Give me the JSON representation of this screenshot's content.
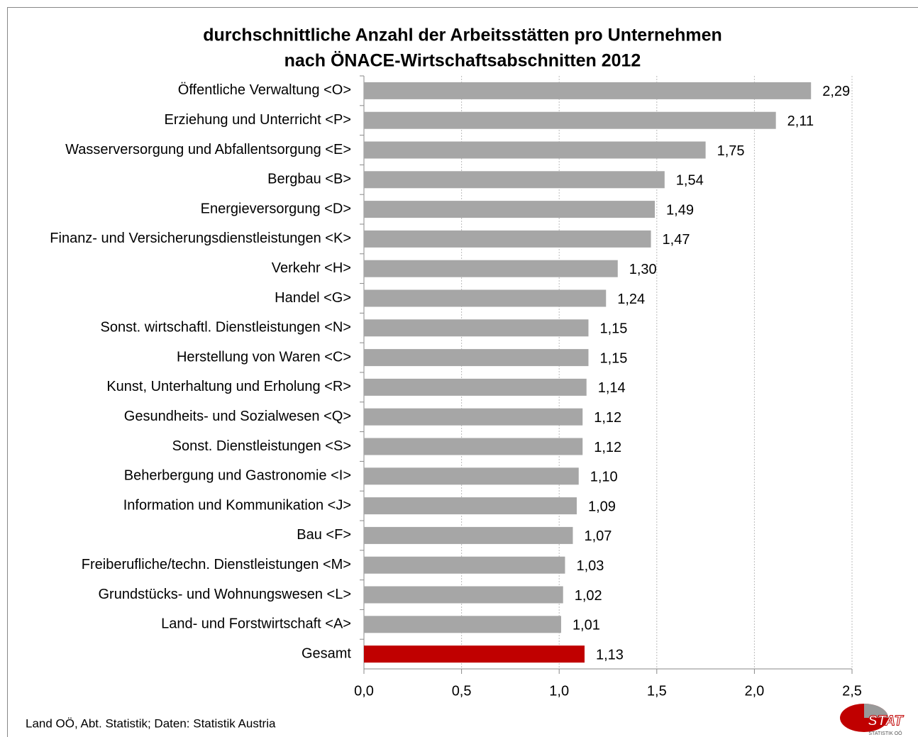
{
  "chart_data": {
    "type": "bar",
    "orientation": "horizontal",
    "title": [
      "durchschnittliche Anzahl der Arbeitsstätten pro Unternehmen",
      "nach ÖNACE-Wirtschaftsabschnitten 2012"
    ],
    "categories": [
      "Öffentliche Verwaltung <O>",
      "Erziehung und Unterricht <P>",
      "Wasserversorgung und Abfallentsorgung <E>",
      "Bergbau <B>",
      "Energieversorgung <D>",
      "Finanz- und Versicherungsdienstleistungen <K>",
      "Verkehr <H>",
      "Handel <G>",
      "Sonst. wirtschaftl. Dienstleistungen <N>",
      "Herstellung von Waren <C>",
      "Kunst, Unterhaltung und Erholung <R>",
      "Gesundheits- und Sozialwesen <Q>",
      "Sonst. Dienstleistungen <S>",
      "Beherbergung und Gastronomie <I>",
      "Information und Kommunikation <J>",
      "Bau <F>",
      "Freiberufliche/techn. Dienstleistungen <M>",
      "Grundstücks- und Wohnungswesen <L>",
      "Land- und Forstwirtschaft <A>",
      "Gesamt"
    ],
    "values": [
      2.29,
      2.11,
      1.75,
      1.54,
      1.49,
      1.47,
      1.3,
      1.24,
      1.15,
      1.15,
      1.14,
      1.12,
      1.12,
      1.1,
      1.09,
      1.07,
      1.03,
      1.02,
      1.01,
      1.13
    ],
    "value_labels": [
      "2,29",
      "2,11",
      "1,75",
      "1,54",
      "1,49",
      "1,47",
      "1,30",
      "1,24",
      "1,15",
      "1,15",
      "1,14",
      "1,12",
      "1,12",
      "1,10",
      "1,09",
      "1,07",
      "1,03",
      "1,02",
      "1,01",
      "1,13"
    ],
    "colors": [
      "#a6a6a6",
      "#a6a6a6",
      "#a6a6a6",
      "#a6a6a6",
      "#a6a6a6",
      "#a6a6a6",
      "#a6a6a6",
      "#a6a6a6",
      "#a6a6a6",
      "#a6a6a6",
      "#a6a6a6",
      "#a6a6a6",
      "#a6a6a6",
      "#a6a6a6",
      "#a6a6a6",
      "#a6a6a6",
      "#a6a6a6",
      "#a6a6a6",
      "#a6a6a6",
      "#c00000"
    ],
    "xlim": [
      0,
      2.5
    ],
    "xticks": [
      {
        "value": 0,
        "label": "0,0"
      },
      {
        "value": 0.5,
        "label": "0,5"
      },
      {
        "value": 1,
        "label": "1,0"
      },
      {
        "value": 1.5,
        "label": "1,5"
      },
      {
        "value": 2,
        "label": "2,0"
      },
      {
        "value": 2.5,
        "label": "2,5"
      }
    ],
    "grid": true,
    "source": "Land OÖ, Abt. Statistik; Daten: Statistik Austria",
    "logo": {
      "text": "STAT",
      "subtext": "STATISTIK OÖ"
    }
  }
}
